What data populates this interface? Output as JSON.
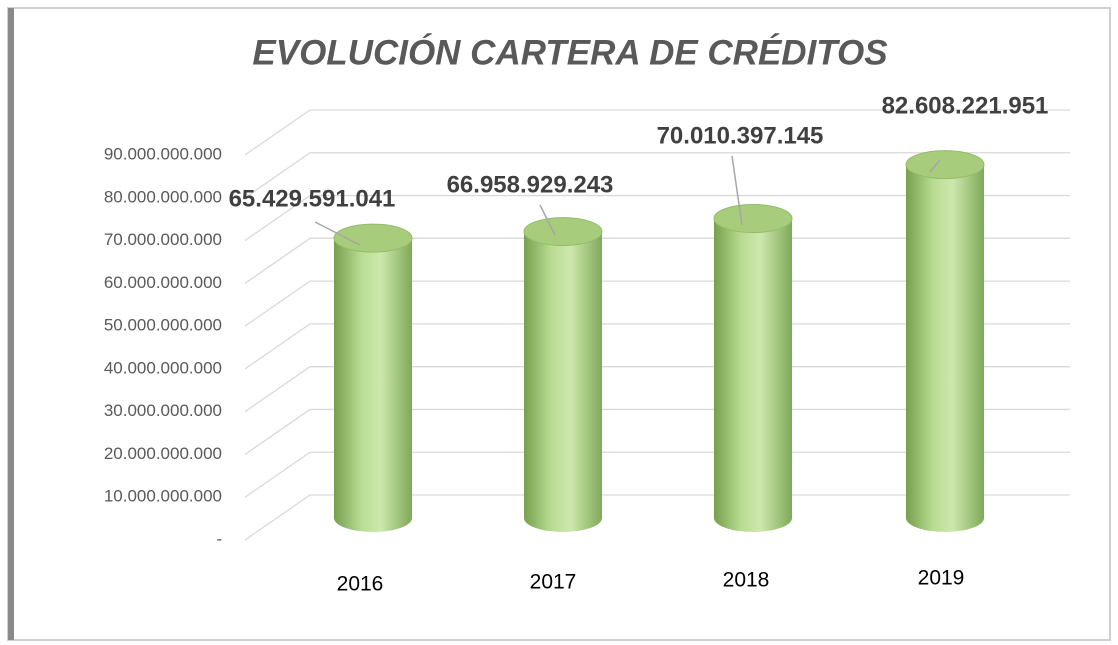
{
  "chart_data": {
    "type": "bar3d",
    "title": "EVOLUCIÓN CARTERA DE CRÉDITOS",
    "categories": [
      "2016",
      "2017",
      "2018",
      "2019"
    ],
    "values": [
      65429591041,
      66958929243,
      70010397145,
      82608221951
    ],
    "value_labels": [
      "65.429.591.041",
      "66.958.929.243",
      "70.010.397.145",
      "82.608.221.951"
    ],
    "color": "#9cc46f",
    "ylim": [
      0,
      90000000000
    ],
    "yticks": [
      {
        "value": 0,
        "label": "-"
      },
      {
        "value": 10000000000,
        "label": "10.000.000.000"
      },
      {
        "value": 20000000000,
        "label": "20.000.000.000"
      },
      {
        "value": 30000000000,
        "label": "30.000.000.000"
      },
      {
        "value": 40000000000,
        "label": "40.000.000.000"
      },
      {
        "value": 50000000000,
        "label": "50.000.000.000"
      },
      {
        "value": 60000000000,
        "label": "60.000.000.000"
      },
      {
        "value": 70000000000,
        "label": "70.000.000.000"
      },
      {
        "value": 80000000000,
        "label": "80.000.000.000"
      },
      {
        "value": 90000000000,
        "label": "90.000.000.000"
      }
    ],
    "grid": true
  }
}
